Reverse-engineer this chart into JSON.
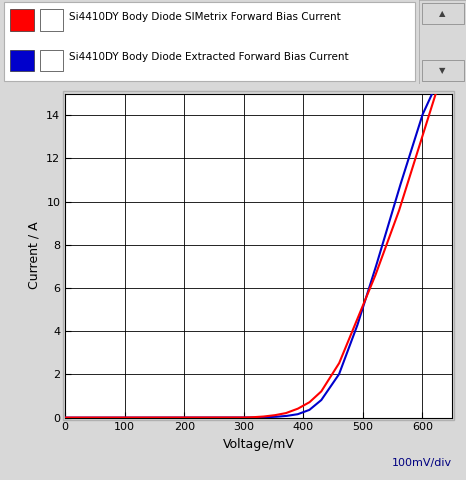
{
  "xlabel": "Voltage/mV",
  "xlabel_right": "100mV/div",
  "ylabel": "Current / A",
  "xlim": [
    0,
    650
  ],
  "ylim": [
    0,
    15
  ],
  "xticks": [
    0,
    100,
    200,
    300,
    400,
    500,
    600
  ],
  "yticks": [
    0,
    2,
    4,
    6,
    8,
    10,
    12,
    14
  ],
  "legend_entries": [
    {
      "label": "Si4410DY Body Diode SIMetrix Forward Bias Current",
      "color": "#FF0000"
    },
    {
      "label": "Si4410DY Body Diode Extracted Forward Bias Current",
      "color": "#0000CC"
    }
  ],
  "bg_color": "#D8D8D8",
  "legend_bg": "#E8E8E8",
  "plot_bg_color": "#FFFFFF",
  "grid_color": "#000000",
  "line_width": 1.5,
  "v_red": [
    0,
    295,
    310,
    330,
    350,
    370,
    390,
    410,
    430,
    460,
    490,
    520,
    560,
    600,
    625
  ],
  "i_red": [
    0,
    0,
    0.01,
    0.04,
    0.1,
    0.2,
    0.4,
    0.7,
    1.2,
    2.5,
    4.5,
    6.5,
    9.5,
    13.0,
    15.2
  ],
  "v_blue": [
    0,
    295,
    310,
    330,
    350,
    370,
    390,
    410,
    430,
    460,
    490,
    520,
    560,
    600,
    625
  ],
  "i_blue": [
    0,
    0,
    0.0,
    0.01,
    0.03,
    0.07,
    0.15,
    0.35,
    0.8,
    2.0,
    4.2,
    6.8,
    10.5,
    14.0,
    15.5
  ]
}
